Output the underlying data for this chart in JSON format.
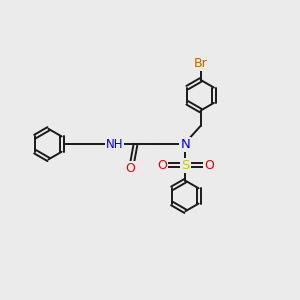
{
  "background_color": "#ebebeb",
  "bond_color": "#1a1a1a",
  "N_color": "#0000ee",
  "O_color": "#ee0000",
  "S_color": "#cccc00",
  "Br_color": "#bb6600",
  "H_color": "#888888",
  "lw": 1.4,
  "dbo": 0.055,
  "ring_r": 0.52,
  "fig_w": 3.0,
  "fig_h": 3.0,
  "dpi": 100,
  "xlim": [
    0,
    10
  ],
  "ylim": [
    0,
    10
  ]
}
